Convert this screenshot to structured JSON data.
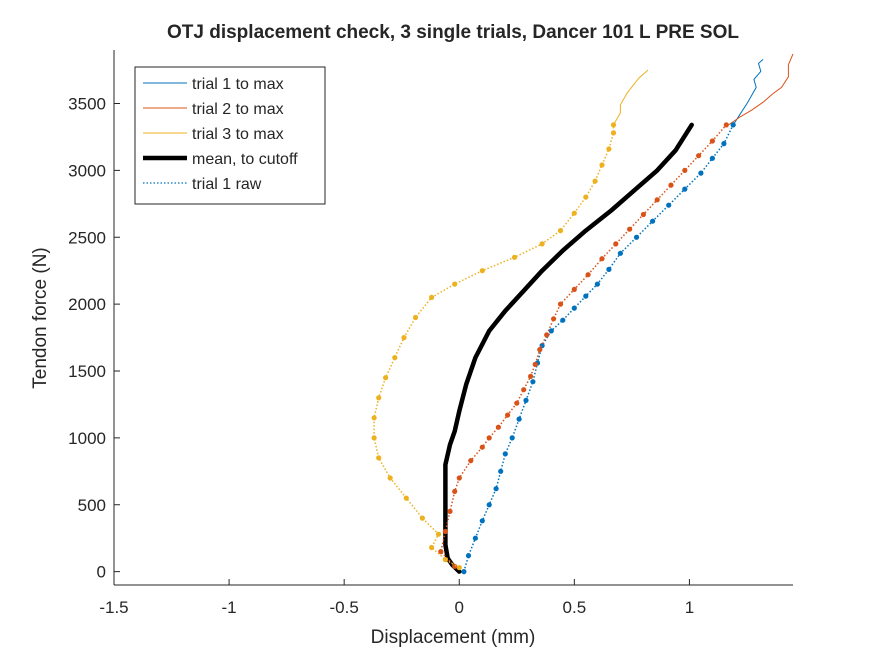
{
  "chart_data": {
    "type": "line",
    "title": "OTJ displacement check, 3 single trials, Dancer 101 L PRE SOL",
    "xlabel": "Displacement (mm)",
    "ylabel": "Tendon force (N)",
    "xlim": [
      -1.5,
      1.45
    ],
    "ylim": [
      -100,
      3900
    ],
    "x_ticks": [
      -1.5,
      -1,
      -0.5,
      0,
      0.5,
      1
    ],
    "x_tick_labels": [
      "-1.5",
      "-1",
      "-0.5",
      "0",
      "0.5",
      "1"
    ],
    "y_ticks": [
      0,
      500,
      1000,
      1500,
      2000,
      2500,
      3000,
      3500
    ],
    "y_tick_labels": [
      "0",
      "500",
      "1000",
      "1500",
      "2000",
      "2500",
      "3000",
      "3500"
    ],
    "grid": false,
    "legend_position": "top-left",
    "series": [
      {
        "name": "trial 1 to max",
        "color": "#0072BD",
        "style": "thin",
        "points": [
          [
            1.19,
            3340
          ],
          [
            1.22,
            3420
          ],
          [
            1.25,
            3500
          ],
          [
            1.27,
            3560
          ],
          [
            1.29,
            3620
          ],
          [
            1.28,
            3680
          ],
          [
            1.31,
            3740
          ],
          [
            1.3,
            3800
          ],
          [
            1.32,
            3830
          ]
        ]
      },
      {
        "name": "trial 2 to max",
        "color": "#D95319",
        "style": "thin",
        "points": [
          [
            1.17,
            3340
          ],
          [
            1.22,
            3400
          ],
          [
            1.27,
            3450
          ],
          [
            1.32,
            3510
          ],
          [
            1.36,
            3570
          ],
          [
            1.4,
            3620
          ],
          [
            1.43,
            3700
          ],
          [
            1.43,
            3790
          ],
          [
            1.45,
            3870
          ]
        ]
      },
      {
        "name": "trial 3 to max",
        "color": "#EDB120",
        "style": "thin",
        "points": [
          [
            0.67,
            3340
          ],
          [
            0.7,
            3430
          ],
          [
            0.7,
            3490
          ],
          [
            0.73,
            3580
          ],
          [
            0.78,
            3690
          ],
          [
            0.82,
            3750
          ]
        ]
      },
      {
        "name": "mean, to cutoff",
        "color": "#000000",
        "style": "thick",
        "points": [
          [
            0,
            0
          ],
          [
            -0.03,
            50
          ],
          [
            -0.05,
            100
          ],
          [
            -0.06,
            200
          ],
          [
            -0.06,
            400
          ],
          [
            -0.06,
            600
          ],
          [
            -0.06,
            800
          ],
          [
            -0.04,
            950
          ],
          [
            -0.02,
            1050
          ],
          [
            0,
            1200
          ],
          [
            0.03,
            1400
          ],
          [
            0.07,
            1600
          ],
          [
            0.13,
            1800
          ],
          [
            0.2,
            1950
          ],
          [
            0.28,
            2100
          ],
          [
            0.36,
            2250
          ],
          [
            0.45,
            2400
          ],
          [
            0.55,
            2550
          ],
          [
            0.66,
            2700
          ],
          [
            0.76,
            2850
          ],
          [
            0.86,
            3000
          ],
          [
            0.94,
            3150
          ],
          [
            1.01,
            3340
          ]
        ]
      },
      {
        "name": "trial 1 raw",
        "color": "#0072BD",
        "style": "dotted-markers",
        "points": [
          [
            0.02,
            0
          ],
          [
            0.04,
            120
          ],
          [
            0.07,
            250
          ],
          [
            0.1,
            380
          ],
          [
            0.13,
            500
          ],
          [
            0.16,
            620
          ],
          [
            0.18,
            750
          ],
          [
            0.2,
            880
          ],
          [
            0.23,
            1000
          ],
          [
            0.26,
            1140
          ],
          [
            0.29,
            1280
          ],
          [
            0.32,
            1420
          ],
          [
            0.34,
            1560
          ],
          [
            0.36,
            1690
          ],
          [
            0.4,
            1800
          ],
          [
            0.45,
            1880
          ],
          [
            0.5,
            1970
          ],
          [
            0.55,
            2060
          ],
          [
            0.6,
            2150
          ],
          [
            0.65,
            2260
          ],
          [
            0.7,
            2380
          ],
          [
            0.77,
            2500
          ],
          [
            0.84,
            2620
          ],
          [
            0.91,
            2740
          ],
          [
            0.98,
            2860
          ],
          [
            1.05,
            2980
          ],
          [
            1.1,
            3090
          ],
          [
            1.15,
            3200
          ],
          [
            1.19,
            3340
          ]
        ]
      },
      {
        "name": "",
        "color": "#D95319",
        "style": "dotted-markers",
        "points": [
          [
            -0.02,
            40
          ],
          [
            -0.08,
            150
          ],
          [
            -0.06,
            300
          ],
          [
            -0.04,
            450
          ],
          [
            -0.02,
            600
          ],
          [
            0,
            700
          ],
          [
            0.05,
            830
          ],
          [
            0.1,
            930
          ],
          [
            0.13,
            1000
          ],
          [
            0.17,
            1080
          ],
          [
            0.21,
            1170
          ],
          [
            0.25,
            1260
          ],
          [
            0.28,
            1360
          ],
          [
            0.31,
            1460
          ],
          [
            0.33,
            1550
          ],
          [
            0.35,
            1660
          ],
          [
            0.38,
            1770
          ],
          [
            0.41,
            1890
          ],
          [
            0.44,
            2000
          ],
          [
            0.5,
            2110
          ],
          [
            0.56,
            2220
          ],
          [
            0.62,
            2340
          ],
          [
            0.68,
            2450
          ],
          [
            0.74,
            2560
          ],
          [
            0.8,
            2670
          ],
          [
            0.86,
            2780
          ],
          [
            0.92,
            2890
          ],
          [
            0.98,
            3000
          ],
          [
            1.04,
            3110
          ],
          [
            1.1,
            3220
          ],
          [
            1.16,
            3340
          ]
        ]
      },
      {
        "name": "",
        "color": "#EDB120",
        "style": "dotted-markers",
        "points": [
          [
            0,
            30
          ],
          [
            -0.06,
            90
          ],
          [
            -0.12,
            180
          ],
          [
            -0.09,
            280
          ],
          [
            -0.16,
            400
          ],
          [
            -0.23,
            550
          ],
          [
            -0.3,
            700
          ],
          [
            -0.35,
            850
          ],
          [
            -0.37,
            1000
          ],
          [
            -0.37,
            1150
          ],
          [
            -0.35,
            1300
          ],
          [
            -0.32,
            1450
          ],
          [
            -0.28,
            1600
          ],
          [
            -0.24,
            1750
          ],
          [
            -0.19,
            1900
          ],
          [
            -0.12,
            2050
          ],
          [
            -0.02,
            2150
          ],
          [
            0.1,
            2250
          ],
          [
            0.24,
            2350
          ],
          [
            0.36,
            2450
          ],
          [
            0.44,
            2550
          ],
          [
            0.5,
            2680
          ],
          [
            0.55,
            2800
          ],
          [
            0.59,
            2920
          ],
          [
            0.62,
            3040
          ],
          [
            0.65,
            3160
          ],
          [
            0.67,
            3280
          ],
          [
            0.67,
            3340
          ]
        ]
      }
    ]
  }
}
